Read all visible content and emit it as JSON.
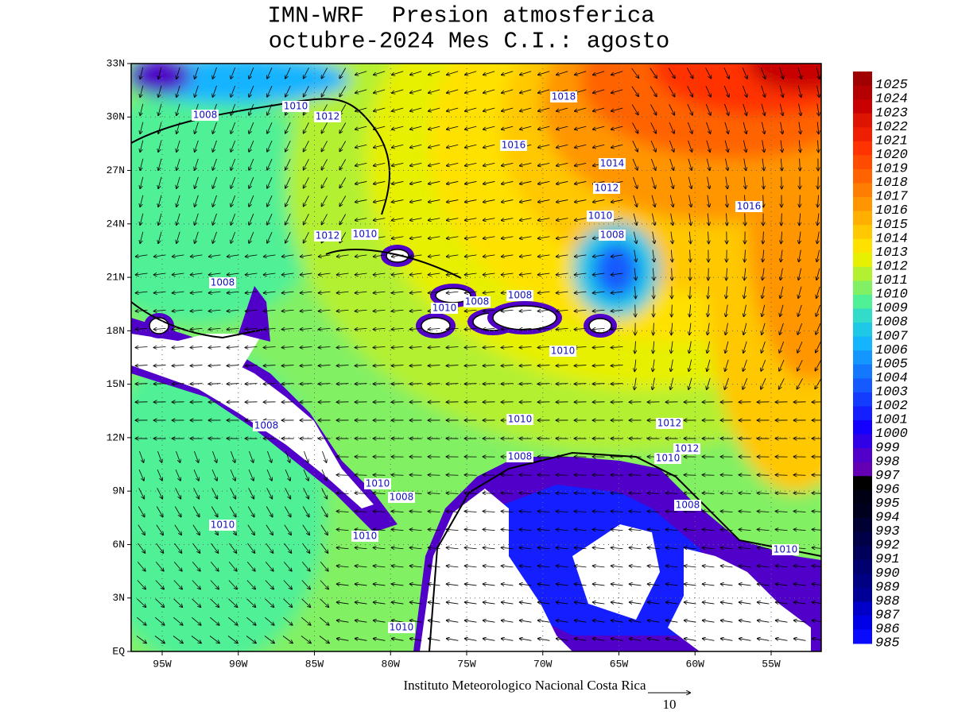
{
  "header": {
    "title_line1": "IMN-WRF  Presion atmosferica",
    "title_line2": "octubre-2024 Mes C.I.: agosto"
  },
  "map": {
    "lat_labels": [
      "EQ",
      "3N",
      "6N",
      "9N",
      "12N",
      "15N",
      "18N",
      "21N",
      "24N",
      "27N",
      "30N",
      "33N"
    ],
    "lon_labels": [
      "95W",
      "90W",
      "85W",
      "80W",
      "75W",
      "70W",
      "65W",
      "60W",
      "55W"
    ],
    "contour_labels": [
      1008,
      1010,
      1012,
      1018,
      1016,
      1014,
      1012,
      1010,
      1008,
      1016,
      1012,
      1010,
      1008,
      1010,
      1008,
      1008,
      1010,
      1008,
      1010,
      1012,
      1008,
      1012,
      1010,
      1010,
      1008,
      1008,
      1010,
      1010,
      1010,
      1010
    ]
  },
  "colorbar": {
    "levels": [
      1025,
      1024,
      1023,
      1022,
      1021,
      1020,
      1019,
      1018,
      1017,
      1016,
      1015,
      1014,
      1013,
      1012,
      1011,
      1010,
      1009,
      1008,
      1007,
      1006,
      1005,
      1004,
      1003,
      1002,
      1001,
      1000,
      999,
      998,
      997,
      996,
      995,
      994,
      993,
      992,
      991,
      990,
      989,
      988,
      987,
      986,
      985
    ],
    "colors": [
      "#a00000",
      "#b40000",
      "#c80000",
      "#dc1400",
      "#f01e00",
      "#ff3200",
      "#ff4b00",
      "#ff6400",
      "#ff7d00",
      "#ff9600",
      "#ffaf00",
      "#ffc800",
      "#ffe100",
      "#e6f000",
      "#b4f032",
      "#82f064",
      "#50f096",
      "#32dcc8",
      "#1ec8e6",
      "#14b4ff",
      "#1496ff",
      "#1478ff",
      "#145aff",
      "#143cff",
      "#141eff",
      "#1400ff",
      "#3200e6",
      "#5000c8",
      "#6400b4",
      "#000000",
      "#000014",
      "#00001e",
      "#000032",
      "#000046",
      "#00005a",
      "#00006e",
      "#000082",
      "#000096",
      "#0000c8",
      "#0000e6",
      "#0a0aff"
    ]
  },
  "footer": {
    "credit": "Instituto Meteorologico Nacional Costa Rica",
    "vector_scale": 10
  }
}
